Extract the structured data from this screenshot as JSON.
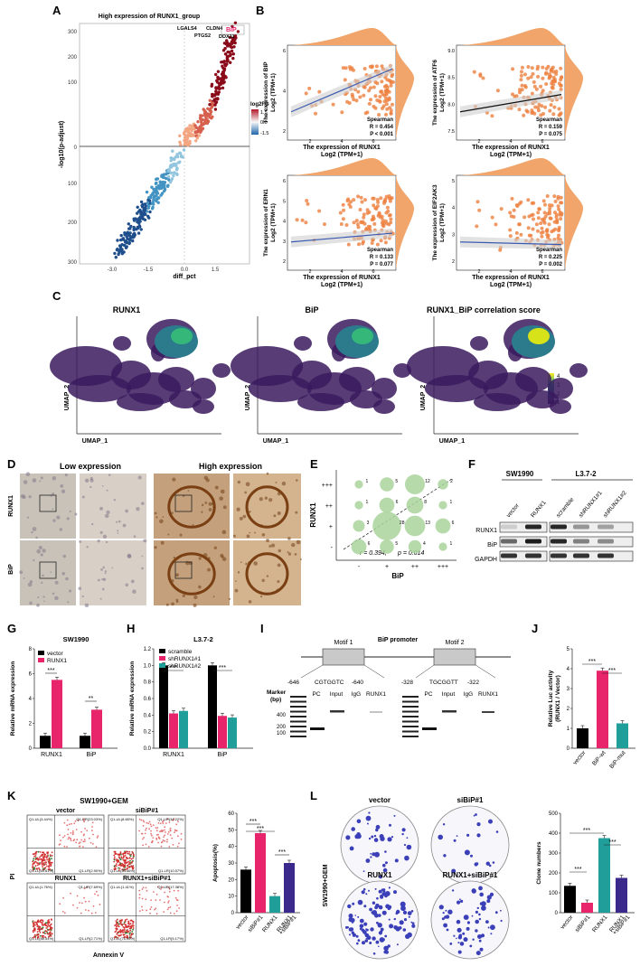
{
  "panels": {
    "A": "A",
    "B": "B",
    "C": "C",
    "D": "D",
    "E": "E",
    "F": "F",
    "G": "G",
    "H": "H",
    "I": "I",
    "J": "J",
    "K": "K",
    "L": "L"
  },
  "A": {
    "title": "High expression of RUNX1_group",
    "xlabel": "diff_pct",
    "ylabel": "-log10(p-adjust)",
    "legend_title": "log2FC",
    "legend_ticks": [
      "1.5",
      "0.0",
      "-1.5"
    ],
    "labels": [
      "LGALS4",
      "CLDN4",
      "BiP",
      "PTGS2",
      "DDX31"
    ]
  },
  "B": {
    "xlabel_line1": "The expression of RUNX1",
    "xlabel_line2": "Log2 (TPM+1)",
    "plots": [
      {
        "gene": "BIP",
        "ylabel1": "The expression of BIP",
        "ylabel2": "Log2 (TPM+1)",
        "method": "Spearman",
        "r": "R = 0.454",
        "p": "P < 0.001",
        "yticks": [
          "2",
          "4",
          "6"
        ]
      },
      {
        "gene": "ATF6",
        "ylabel1": "The expression of ATF6",
        "ylabel2": "Log2 (TPM+1)",
        "method": "Spearman",
        "r": "R = 0.159",
        "p": "P = 0.075",
        "yticks": [
          "7.5",
          "8.0",
          "8.5",
          "9.0"
        ]
      },
      {
        "gene": "ERN1",
        "ylabel1": "The expression of ERN1",
        "ylabel2": "Log2 (TPM+1)",
        "method": "Spearman",
        "r": "R = 0.133",
        "p": "P = 0.077",
        "yticks": [
          "2",
          "3",
          "4",
          "5",
          "6"
        ]
      },
      {
        "gene": "EIF2AK3",
        "ylabel1": "The expression of EIF2AK3",
        "ylabel2": "Log2 (TPM+1)",
        "method": "Spearman",
        "r": "R = 0.225",
        "p": "P = 0.002",
        "yticks": [
          "2",
          "3",
          "4",
          "5"
        ]
      }
    ],
    "xticks": [
      "2",
      "4",
      "6"
    ]
  },
  "C": {
    "titles": [
      "RUNX1",
      "BiP",
      "RUNX1_BiP correlation score"
    ],
    "xlabel": "UMAP_1",
    "ylabel": "UMAP_2",
    "colorbar_ticks": [
      "4",
      "3",
      "2",
      "1"
    ]
  },
  "D": {
    "low": "Low expression",
    "high": "High expression",
    "rows": [
      "RUNX1",
      "BiP"
    ]
  },
  "E": {
    "ylabel": "RUNX1",
    "xlabel": "BiP",
    "levels": [
      "-",
      "+",
      "++",
      "+++"
    ],
    "stat_r": "r = 0.394,",
    "stat_p": "p = 0.014",
    "counts": [
      {
        "x": 1,
        "y": 4,
        "n": "1"
      },
      {
        "x": 2,
        "y": 4,
        "n": "5"
      },
      {
        "x": 3,
        "y": 4,
        "n": "12"
      },
      {
        "x": 4,
        "y": 4,
        "n": "2"
      },
      {
        "x": 1,
        "y": 3,
        "n": "1"
      },
      {
        "x": 2,
        "y": 3,
        "n": "6"
      },
      {
        "x": 3,
        "y": 3,
        "n": "8"
      },
      {
        "x": 4,
        "y": 3,
        "n": "1"
      },
      {
        "x": 1,
        "y": 2,
        "n": "3"
      },
      {
        "x": 2,
        "y": 2,
        "n": "28"
      },
      {
        "x": 3,
        "y": 2,
        "n": "13"
      },
      {
        "x": 4,
        "y": 2,
        "n": "6"
      },
      {
        "x": 1,
        "y": 1,
        "n": "6"
      },
      {
        "x": 2,
        "y": 1,
        "n": "5"
      },
      {
        "x": 3,
        "y": 1,
        "n": "4"
      },
      {
        "x": 4,
        "y": 1,
        "n": "1"
      }
    ]
  },
  "F": {
    "cell1": "SW1990",
    "cell2": "L3.7-2",
    "lanes": [
      "vector",
      "RUNX1",
      "scramble",
      "shRUNX1#1",
      "shRUNX1#2"
    ],
    "proteins": [
      "RUNX1",
      "BiP",
      "GAPDH"
    ]
  },
  "G": {
    "title": "SW1990",
    "ylabel": "Relative mRNA expression",
    "legend": [
      "vector",
      "RUNX1"
    ],
    "colors": [
      "#000000",
      "#e8246b"
    ],
    "categories": [
      "RUNX1",
      "BiP"
    ],
    "yticks": [
      "0",
      "2",
      "4",
      "6",
      "8"
    ],
    "sig": [
      "***",
      "**"
    ]
  },
  "H": {
    "title": "L3.7-2",
    "ylabel": "Relative mRNA expression",
    "legend": [
      "scramble",
      "shRUNX1#1",
      "shRUNX1#2"
    ],
    "colors": [
      "#000000",
      "#e8246b",
      "#1f9e9a"
    ],
    "categories": [
      "RUNX1",
      "BiP"
    ],
    "yticks": [
      "0.0",
      "0.2",
      "0.4",
      "0.6",
      "0.8",
      "1.0",
      "1.2"
    ],
    "sig": [
      "***",
      "***"
    ]
  },
  "I": {
    "title": "BiP promoter",
    "motifs": [
      "Motif 1",
      "Motif 2"
    ],
    "marker_label1": "Marker",
    "marker_label2": "(bp)",
    "marker_ticks": [
      "400",
      "200",
      "100"
    ],
    "pos1": "-646",
    "seq1": "CGTGGTC",
    "pos2": "-640",
    "pos3": "-328",
    "seq2": "TGCGGTT",
    "pos4": "-322",
    "lanes": [
      "PC",
      "Input",
      "IgG",
      "RUNX1"
    ]
  },
  "J": {
    "ylabel": "Relative Luc activity",
    "ylabel2": "(RUNX1 / Vector)",
    "categories": [
      "vector",
      "BiP-wt",
      "BiP-mut"
    ],
    "colors": [
      "#000000",
      "#e8246b",
      "#1f9e9a"
    ],
    "yticks": [
      "0",
      "1",
      "2",
      "3",
      "4",
      "5"
    ],
    "sig": [
      "***",
      "***"
    ]
  },
  "K": {
    "title": "SW1990+GEM",
    "quadrants": [
      "vector",
      "siBiP#1",
      "RUNX1",
      "RUNX1+siBiP#1"
    ],
    "xlabel": "Annexin V",
    "ylabel": "PI",
    "quad_labels": [
      {
        "ul": "Q1-UL(3.44%)",
        "ur": "Q1-UR(23.03%)",
        "ll": "Q1-LL(69.61%)",
        "lr": "Q1-LR(2.90%)"
      },
      {
        "ul": "Q1-UL(8.65%)",
        "ur": "Q1-UR(34.22%)",
        "ll": "Q1-LL(54.56%)",
        "lr": "Q1-LR(10.57%)"
      },
      {
        "ul": "Q1-UL(1.76%)",
        "ur": "Q1-UR(7.69%)",
        "ll": "Q1-LL(88.54%)",
        "lr": "Q1-LR(2.71%)"
      },
      {
        "ul": "Q1-UL(1.41%)",
        "ur": "Q1-UR(17.38%)",
        "ll": "Q1-LL(76.06%)",
        "lr": "Q1-LR(5.17%)"
      }
    ],
    "bar_ylabel": "Apoptosis(%)",
    "bar_yticks": [
      "0",
      "10",
      "20",
      "30",
      "40",
      "50",
      "60"
    ],
    "bar_categories": [
      "vector",
      "siBiP#1",
      "RUNX1",
      "RUNX1",
      "+siBiP#1"
    ],
    "colors": [
      "#000000",
      "#e8246b",
      "#1f9e9a",
      "#3b2a8c"
    ],
    "sig": [
      "***",
      "***",
      "***"
    ]
  },
  "L": {
    "titles": [
      "vector",
      "siBiP#1",
      "RUNX1",
      "RUNX1+siBiP#1"
    ],
    "side_label": "SW1990+GEM",
    "bar_ylabel": "Clone numbers",
    "bar_yticks": [
      "0",
      "100",
      "200",
      "300",
      "400",
      "500"
    ],
    "bar_categories": [
      "vector",
      "siBiP#1",
      "RUNX1",
      "RUNX1",
      "+siBiP#1"
    ],
    "colors": [
      "#000000",
      "#e8246b",
      "#1f9e9a",
      "#3b2a8c"
    ],
    "sig": [
      "***",
      "***",
      "***"
    ]
  },
  "chart_data": [
    {
      "panel": "G",
      "type": "bar",
      "title": "SW1990",
      "categories": [
        "RUNX1",
        "BiP"
      ],
      "series": [
        {
          "name": "vector",
          "values": [
            1.0,
            1.0
          ]
        },
        {
          "name": "RUNX1",
          "values": [
            5.5,
            3.1
          ]
        }
      ],
      "ylabel": "Relative mRNA expression",
      "ylim": [
        0,
        8
      ]
    },
    {
      "panel": "H",
      "type": "bar",
      "title": "L3.7-2",
      "categories": [
        "RUNX1",
        "BiP"
      ],
      "series": [
        {
          "name": "scramble",
          "values": [
            1.0,
            1.0
          ]
        },
        {
          "name": "shRUNX1#1",
          "values": [
            0.42,
            0.39
          ]
        },
        {
          "name": "shRUNX1#2",
          "values": [
            0.45,
            0.37
          ]
        }
      ],
      "ylabel": "Relative mRNA expression",
      "ylim": [
        0,
        1.2
      ]
    },
    {
      "panel": "J",
      "type": "bar",
      "categories": [
        "vector",
        "BiP-wt",
        "BiP-mut"
      ],
      "values": [
        1.0,
        3.9,
        1.25
      ],
      "ylabel": "Relative Luc activity",
      "ylim": [
        0,
        5
      ]
    },
    {
      "panel": "K",
      "type": "bar",
      "categories": [
        "vector",
        "siBiP#1",
        "RUNX1",
        "RUNX1+siBiP#1"
      ],
      "values": [
        26,
        48,
        10,
        30
      ],
      "ylabel": "Apoptosis(%)",
      "ylim": [
        0,
        60
      ]
    },
    {
      "panel": "L",
      "type": "bar",
      "categories": [
        "vector",
        "siBiP#1",
        "RUNX1",
        "RUNX1+siBiP#1"
      ],
      "values": [
        135,
        50,
        375,
        175
      ],
      "ylabel": "Clone numbers",
      "ylim": [
        0,
        500
      ]
    }
  ]
}
